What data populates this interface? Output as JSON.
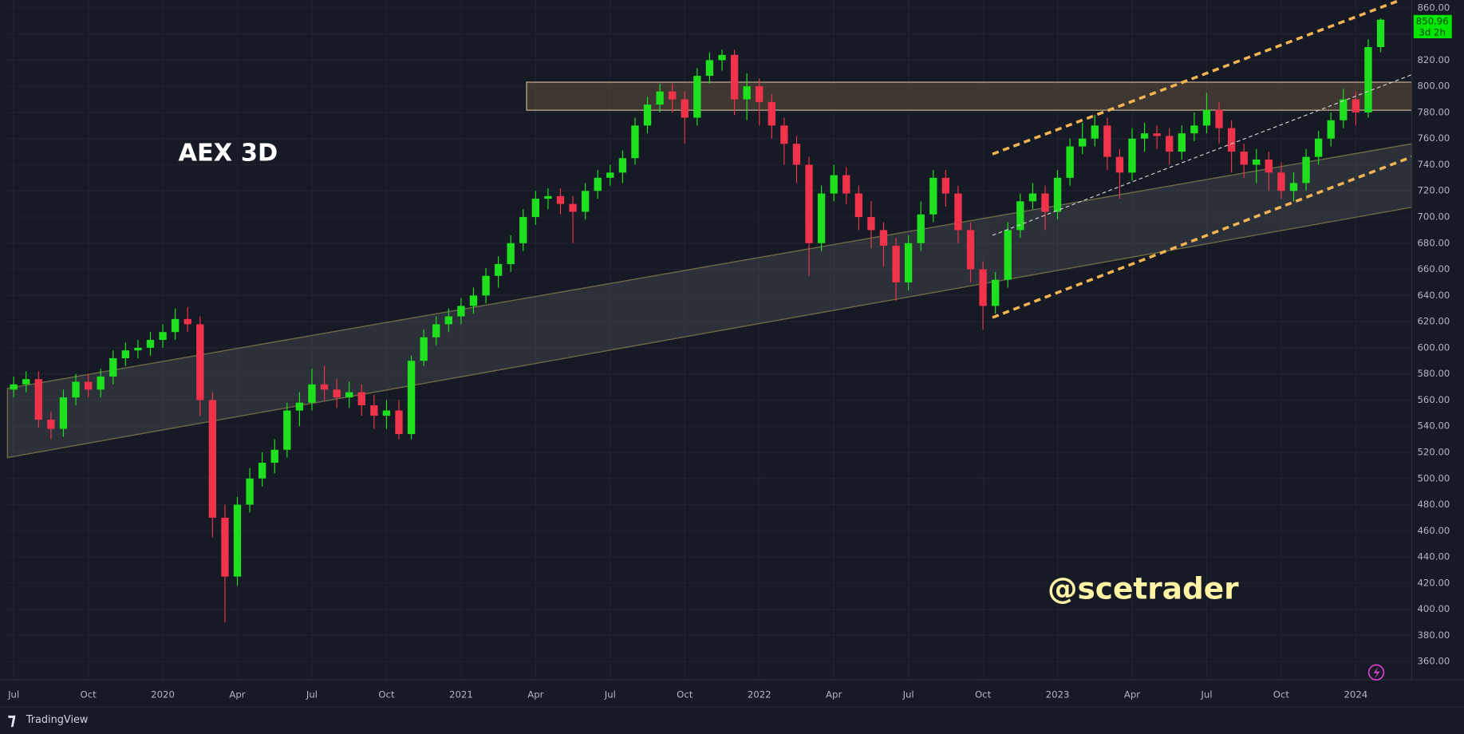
{
  "chart_data": {
    "type": "candlestick",
    "title": "AEX 3D",
    "annotation": "@scetrader",
    "countdown": "3d 2h",
    "source": "TradingView",
    "up_color": "#1fe01f",
    "down_color": "#f0334a",
    "grid": true,
    "open": [
      568,
      572,
      576,
      545,
      538,
      562,
      574,
      568,
      578,
      592,
      598,
      600,
      606,
      612,
      622,
      618,
      560,
      470,
      425,
      480,
      500,
      512,
      522,
      552,
      558,
      572,
      568,
      562,
      566,
      556,
      548,
      552,
      534,
      590,
      608,
      618,
      624,
      632,
      640,
      655,
      664,
      680,
      700,
      714,
      716,
      710,
      704,
      720,
      730,
      734,
      745,
      770,
      786,
      796,
      790,
      776,
      808,
      820,
      824,
      790,
      800,
      788,
      770,
      756,
      740,
      680,
      718,
      732,
      718,
      700,
      690,
      678,
      650,
      680,
      702,
      730,
      718,
      690,
      660,
      632,
      652,
      690,
      712,
      718,
      704,
      730,
      754,
      760,
      770,
      746,
      734,
      760,
      764,
      762,
      750,
      764,
      770,
      782,
      768,
      750,
      740,
      744,
      734,
      720,
      726,
      746,
      760,
      774,
      790,
      780,
      830
    ],
    "high": [
      578,
      582,
      582,
      551,
      568,
      580,
      580,
      584,
      598,
      604,
      606,
      612,
      618,
      630,
      631,
      624,
      566,
      480,
      486,
      508,
      520,
      530,
      558,
      566,
      584,
      586,
      576,
      574,
      572,
      564,
      560,
      560,
      594,
      614,
      624,
      630,
      638,
      646,
      661,
      670,
      686,
      706,
      720,
      722,
      722,
      716,
      726,
      736,
      740,
      751,
      776,
      792,
      802,
      802,
      796,
      814,
      826,
      828,
      828,
      810,
      806,
      794,
      776,
      762,
      746,
      724,
      740,
      738,
      724,
      712,
      696,
      684,
      686,
      712,
      736,
      736,
      724,
      696,
      666,
      658,
      696,
      718,
      726,
      724,
      736,
      760,
      772,
      778,
      776,
      752,
      768,
      772,
      770,
      768,
      770,
      780,
      795,
      788,
      774,
      756,
      752,
      750,
      742,
      734,
      752,
      766,
      780,
      798,
      796,
      836,
      852
    ],
    "low": [
      562,
      566,
      539,
      530,
      532,
      556,
      562,
      562,
      572,
      586,
      592,
      594,
      600,
      606,
      612,
      548,
      455,
      390,
      418,
      474,
      494,
      504,
      516,
      540,
      552,
      560,
      554,
      554,
      548,
      538,
      538,
      530,
      530,
      586,
      602,
      612,
      618,
      626,
      634,
      646,
      658,
      674,
      694,
      706,
      702,
      680,
      698,
      714,
      724,
      726,
      740,
      764,
      780,
      780,
      756,
      770,
      802,
      812,
      778,
      774,
      770,
      760,
      740,
      726,
      655,
      674,
      712,
      710,
      690,
      676,
      662,
      636,
      644,
      674,
      696,
      708,
      680,
      650,
      614,
      626,
      646,
      684,
      706,
      690,
      698,
      724,
      748,
      754,
      736,
      714,
      728,
      750,
      752,
      740,
      744,
      758,
      764,
      756,
      734,
      730,
      726,
      720,
      714,
      712,
      720,
      740,
      754,
      768,
      770,
      776,
      826
    ],
    "close": [
      572,
      576,
      545,
      538,
      562,
      574,
      568,
      578,
      592,
      598,
      600,
      606,
      612,
      622,
      618,
      560,
      470,
      425,
      480,
      500,
      512,
      522,
      552,
      558,
      572,
      568,
      562,
      566,
      556,
      548,
      552,
      534,
      590,
      608,
      618,
      624,
      632,
      640,
      655,
      664,
      680,
      700,
      714,
      716,
      710,
      704,
      720,
      730,
      734,
      745,
      770,
      786,
      796,
      790,
      776,
      808,
      820,
      824,
      790,
      800,
      788,
      770,
      756,
      740,
      680,
      718,
      732,
      718,
      700,
      690,
      678,
      650,
      680,
      702,
      730,
      718,
      690,
      660,
      632,
      652,
      690,
      712,
      718,
      704,
      730,
      754,
      760,
      770,
      746,
      734,
      760,
      764,
      762,
      750,
      764,
      770,
      782,
      768,
      750,
      740,
      744,
      734,
      720,
      726,
      746,
      760,
      774,
      790,
      780,
      830,
      850.96
    ],
    "ylim": [
      346,
      866
    ],
    "yticks": [
      {
        "value": 360,
        "label": "360.00"
      },
      {
        "value": 380,
        "label": "380.00"
      },
      {
        "value": 400,
        "label": "400.00"
      },
      {
        "value": 420,
        "label": "420.00"
      },
      {
        "value": 440,
        "label": "440.00"
      },
      {
        "value": 460,
        "label": "460.00"
      },
      {
        "value": 480,
        "label": "480.00"
      },
      {
        "value": 500,
        "label": "500.00"
      },
      {
        "value": 520,
        "label": "520.00"
      },
      {
        "value": 540,
        "label": "540.00"
      },
      {
        "value": 560,
        "label": "560.00"
      },
      {
        "value": 580,
        "label": "580.00"
      },
      {
        "value": 600,
        "label": "600.00"
      },
      {
        "value": 620,
        "label": "620.00"
      },
      {
        "value": 640,
        "label": "640.00"
      },
      {
        "value": 660,
        "label": "660.00"
      },
      {
        "value": 680,
        "label": "680.00"
      },
      {
        "value": 700,
        "label": "700.00"
      },
      {
        "value": 720,
        "label": "720.00"
      },
      {
        "value": 740,
        "label": "740.00"
      },
      {
        "value": 760,
        "label": "760.00"
      },
      {
        "value": 780,
        "label": "780.00"
      },
      {
        "value": 800,
        "label": "800.00"
      },
      {
        "value": 820,
        "label": "820.00"
      },
      {
        "value": 840,
        "label": "840.00"
      },
      {
        "value": 860,
        "label": "860.00"
      }
    ],
    "xlim": [
      -0.5,
      112.5
    ],
    "xticks": [
      {
        "value": 0,
        "label": "Jul"
      },
      {
        "value": 6,
        "label": "Oct"
      },
      {
        "value": 12,
        "label": "2020"
      },
      {
        "value": 18,
        "label": "Apr"
      },
      {
        "value": 24,
        "label": "Jul"
      },
      {
        "value": 30,
        "label": "Oct"
      },
      {
        "value": 36,
        "label": "2021"
      },
      {
        "value": 42,
        "label": "Apr"
      },
      {
        "value": 48,
        "label": "Jul"
      },
      {
        "value": 54,
        "label": "Oct"
      },
      {
        "value": 60,
        "label": "2022"
      },
      {
        "value": 66,
        "label": "Apr"
      },
      {
        "value": 72,
        "label": "Jul"
      },
      {
        "value": 78,
        "label": "Oct"
      },
      {
        "value": 84,
        "label": "2023"
      },
      {
        "value": 90,
        "label": "Apr"
      },
      {
        "value": 96,
        "label": "Jul"
      },
      {
        "value": 102,
        "label": "Oct"
      },
      {
        "value": 108,
        "label": "2024"
      }
    ]
  }
}
